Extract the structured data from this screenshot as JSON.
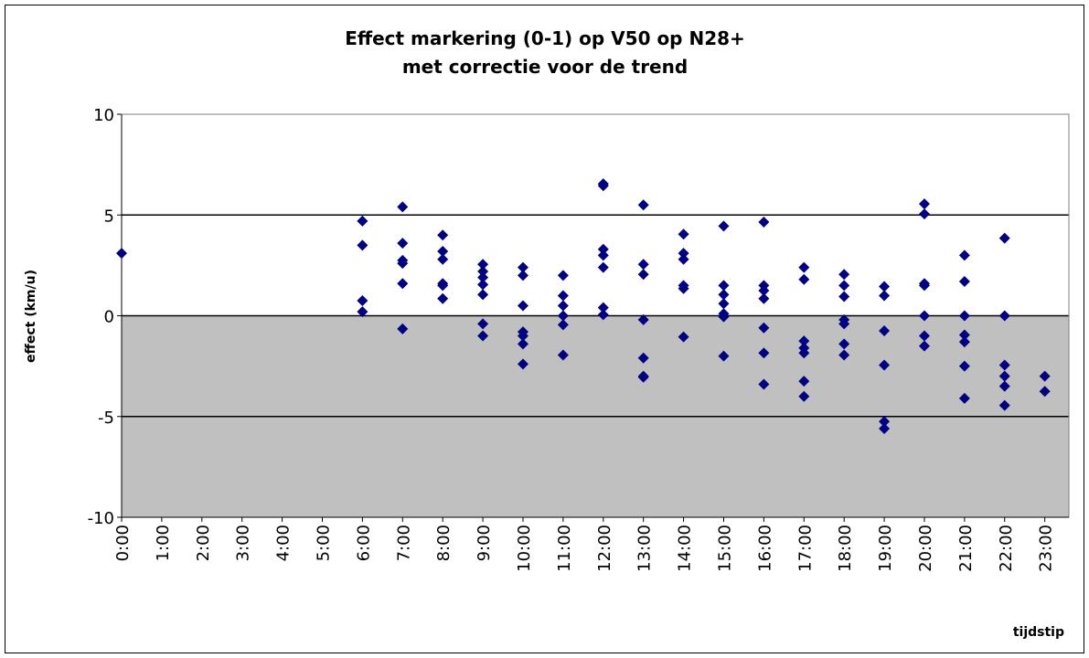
{
  "chart_data": {
    "type": "scatter",
    "title": "Effect markering (0-1) op V50 op N28+",
    "subtitle": "met correctie voor de trend",
    "y_label": "effect (km/u)",
    "x_label": "tijdstip",
    "xlim": [
      0,
      23.6
    ],
    "xticks": [
      {
        "value": 0,
        "label": "0:00"
      },
      {
        "value": 1,
        "label": "1:00"
      },
      {
        "value": 2,
        "label": "2:00"
      },
      {
        "value": 3,
        "label": "3:00"
      },
      {
        "value": 4,
        "label": "4:00"
      },
      {
        "value": 5,
        "label": "5:00"
      },
      {
        "value": 6,
        "label": "6:00"
      },
      {
        "value": 7,
        "label": "7:00"
      },
      {
        "value": 8,
        "label": "8:00"
      },
      {
        "value": 9,
        "label": "9:00"
      },
      {
        "value": 10,
        "label": "10:00"
      },
      {
        "value": 11,
        "label": "11:00"
      },
      {
        "value": 12,
        "label": "12:00"
      },
      {
        "value": 13,
        "label": "13:00"
      },
      {
        "value": 14,
        "label": "14:00"
      },
      {
        "value": 15,
        "label": "15:00"
      },
      {
        "value": 16,
        "label": "16:00"
      },
      {
        "value": 17,
        "label": "17:00"
      },
      {
        "value": 18,
        "label": "18:00"
      },
      {
        "value": 19,
        "label": "19:00"
      },
      {
        "value": 20,
        "label": "20:00"
      },
      {
        "value": 21,
        "label": "21:00"
      },
      {
        "value": 22,
        "label": "22:00"
      },
      {
        "value": 23,
        "label": "23:00"
      }
    ],
    "ylim": [
      -10,
      10
    ],
    "yticks": [
      -10,
      -5,
      0,
      5,
      10
    ],
    "grid": true,
    "series": [
      {
        "color": "#000080",
        "x": [
          0,
          6,
          6,
          6,
          6,
          7,
          7,
          7,
          7,
          7,
          7,
          8,
          8,
          8,
          8,
          8,
          8,
          9,
          9,
          9,
          9,
          9,
          9,
          9,
          10,
          10,
          10,
          10,
          10,
          10,
          10,
          11,
          11,
          11,
          11,
          11,
          11,
          12,
          12,
          12,
          12,
          12,
          12,
          12,
          13,
          13,
          13,
          13,
          13,
          13,
          13,
          14,
          14,
          14,
          14,
          14,
          14,
          15,
          15,
          15,
          15,
          15,
          15,
          15,
          16,
          16,
          16,
          16,
          16,
          16,
          16,
          17,
          17,
          17,
          17,
          17,
          17,
          17,
          18,
          18,
          18,
          18,
          18,
          18,
          18,
          19,
          19,
          19,
          19,
          19,
          19,
          20,
          20,
          20,
          20,
          20,
          20,
          20,
          21,
          21,
          21,
          21,
          21,
          21,
          21,
          22,
          22,
          22,
          22,
          22,
          22,
          23,
          23
        ],
        "values": [
          3.1,
          4.7,
          3.5,
          0.75,
          0.2,
          5.4,
          3.6,
          2.75,
          2.6,
          1.6,
          -0.65,
          4.0,
          3.2,
          2.8,
          1.6,
          1.5,
          0.85,
          2.55,
          2.2,
          1.9,
          1.55,
          1.05,
          -0.4,
          -1.0,
          2.4,
          2.0,
          0.5,
          -0.8,
          -1.0,
          -1.4,
          -2.4,
          2.0,
          1.0,
          0.5,
          0,
          -0.45,
          -1.95,
          6.55,
          6.45,
          3.3,
          3.0,
          2.4,
          0.4,
          0.05,
          5.5,
          2.55,
          2.05,
          -0.2,
          -2.1,
          -3.0,
          -3.05,
          4.05,
          3.1,
          2.8,
          1.5,
          1.35,
          -1.05,
          4.45,
          1.5,
          1.05,
          0.6,
          0.1,
          -0.05,
          -2.0,
          4.65,
          1.5,
          1.25,
          0.85,
          -0.6,
          -1.85,
          -3.4,
          2.4,
          1.8,
          -1.25,
          -1.6,
          -1.85,
          -3.25,
          -4.0,
          2.05,
          1.5,
          0.95,
          -0.2,
          -0.4,
          -1.4,
          -1.95,
          1.45,
          1.0,
          -0.75,
          -2.45,
          -5.25,
          -5.6,
          5.55,
          5.05,
          1.6,
          1.5,
          0,
          -1.0,
          -1.5,
          3.0,
          1.7,
          0,
          -0.95,
          -1.3,
          -2.5,
          -4.1,
          3.85,
          0,
          -2.45,
          -3.0,
          -3.5,
          -4.45,
          -3.0,
          -3.75
        ]
      }
    ]
  }
}
